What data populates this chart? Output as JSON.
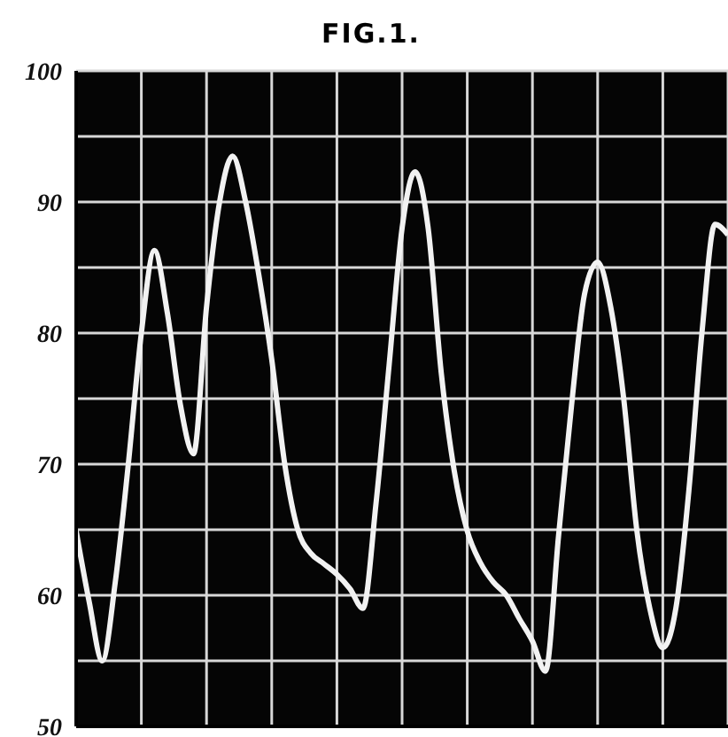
{
  "chart_data": {
    "type": "line",
    "title": "FIG.1.",
    "categories": [
      null,
      null,
      null,
      null,
      null,
      null,
      null,
      null,
      null,
      null,
      null,
      null,
      null,
      null,
      null,
      null,
      null,
      null,
      null,
      null,
      null,
      null,
      null,
      null,
      null,
      null,
      null,
      null,
      null,
      null,
      null,
      null,
      null,
      null,
      null,
      null,
      null,
      null,
      null,
      null,
      null,
      null,
      null,
      null,
      null,
      null,
      null,
      null,
      null,
      null,
      null
    ],
    "series": [
      {
        "color": "#f2f2f2",
        "values": [
          64.9,
          59.5,
          55,
          61,
          70,
          80,
          86.3,
          81.5,
          74.5,
          70.8,
          82,
          90,
          93.5,
          90,
          84.5,
          78,
          70,
          65,
          63.2,
          62.4,
          61.6,
          60.5,
          59,
          67,
          77.5,
          88,
          92.3,
          88,
          77,
          69.5,
          64.9,
          62.5,
          61,
          60,
          58.2,
          56.5,
          54.2,
          64.5,
          74.5,
          83,
          85.4,
          82,
          75,
          65,
          59,
          56,
          59,
          68,
          80,
          88.3,
          87.5
        ]
      }
    ],
    "ylim": [
      50,
      100
    ],
    "yticks": [
      50,
      {
        "value": 55,
        "label": null
      },
      60,
      {
        "value": 65,
        "label": null
      },
      70,
      {
        "value": 75,
        "label": null
      },
      80,
      {
        "value": 85,
        "label": null
      },
      90,
      {
        "value": 95,
        "label": null
      },
      100
    ],
    "grid": true,
    "legend": false,
    "marker": "none",
    "line_style": "solid",
    "tick_labels": "y"
  }
}
